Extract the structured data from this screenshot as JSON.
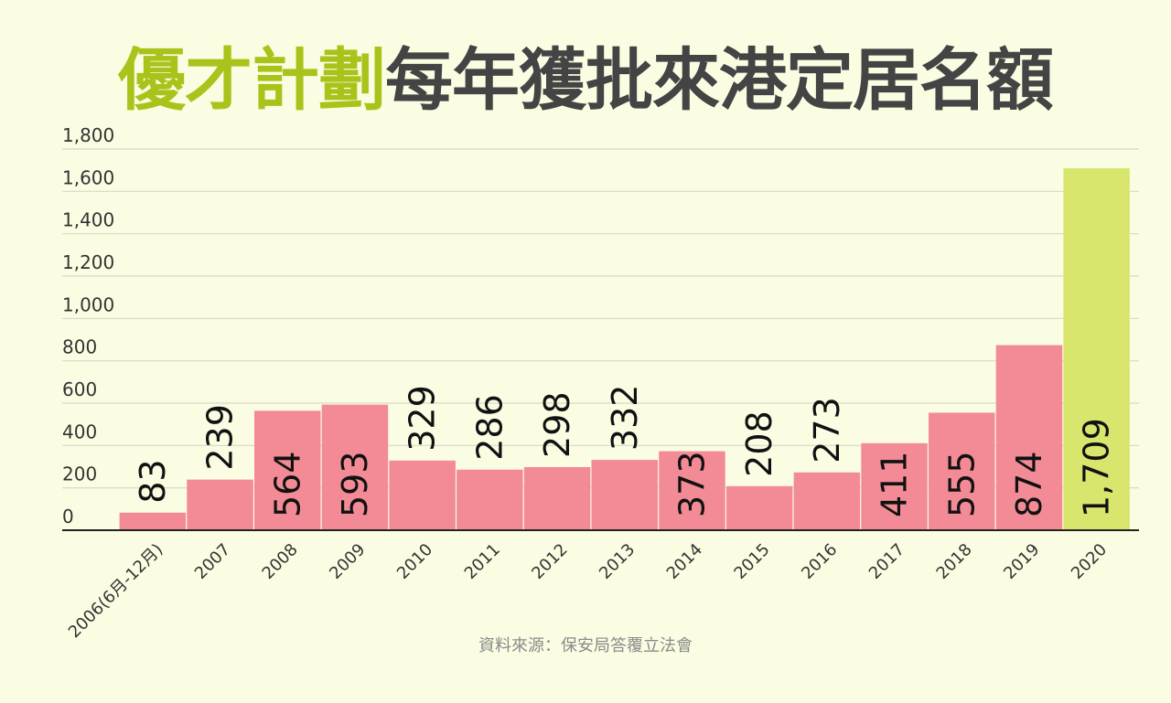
{
  "title": {
    "highlight": "優才計劃",
    "rest": "每年獲批來港定居名額",
    "highlight_color": "#a9c31a",
    "rest_color": "#444444"
  },
  "source": "資料來源：保安局答覆立法會",
  "chart_data": {
    "type": "bar",
    "title": "優才計劃每年獲批來港定居名額",
    "xlabel": "",
    "ylabel": "",
    "categories": [
      "2006(6月-12月)",
      "2007",
      "2008",
      "2009",
      "2010",
      "2011",
      "2012",
      "2013",
      "2014",
      "2015",
      "2016",
      "2017",
      "2018",
      "2019",
      "2020"
    ],
    "values": [
      83,
      239,
      564,
      593,
      329,
      286,
      298,
      332,
      373,
      208,
      273,
      411,
      555,
      874,
      1709
    ],
    "data_labels": [
      "83",
      "239",
      "564",
      "593",
      "329",
      "286",
      "298",
      "332",
      "373",
      "208",
      "273",
      "411",
      "555",
      "874",
      "1,709"
    ],
    "ylim": [
      0,
      1800
    ],
    "yticks": [
      0,
      200,
      400,
      600,
      800,
      1000,
      1200,
      1400,
      1600,
      1800
    ],
    "ytick_labels": [
      "0",
      "200",
      "400",
      "600",
      "800",
      "1,000",
      "1,200",
      "1,400",
      "1,600",
      "1,800"
    ],
    "grid": true,
    "colors": {
      "default": "#f28b96",
      "highlight": "#d8e66e",
      "highlight_category": "2020"
    }
  }
}
